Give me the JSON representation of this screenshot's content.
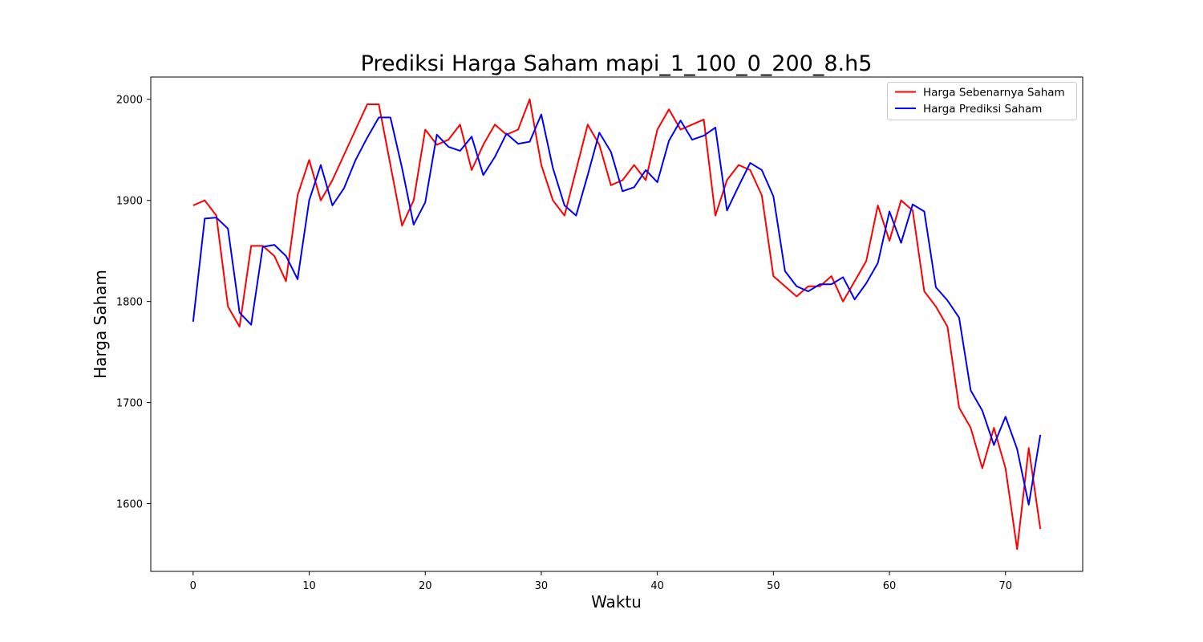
{
  "chart_data": {
    "type": "line",
    "title": "Prediksi Harga Saham mapi_1_100_0_200_8.h5",
    "xlabel": "Waktu",
    "ylabel": "Harga Saham",
    "xlim": [
      -3.65,
      76.65
    ],
    "ylim": [
      1533,
      2022
    ],
    "xticks": [
      0,
      10,
      20,
      30,
      40,
      50,
      60,
      70
    ],
    "yticks": [
      1600,
      1700,
      1800,
      1900,
      2000
    ],
    "grid": false,
    "legend_position": "top-right",
    "series": [
      {
        "name": "Harga Sebenarnya Saham",
        "color": "#ff0000",
        "values": [
          1895,
          1900,
          1885,
          1795,
          1775,
          1855,
          1855,
          1845,
          1820,
          1905,
          1940,
          1900,
          1920,
          1945,
          1970,
          1995,
          1995,
          1935,
          1875,
          1900,
          1970,
          1955,
          1960,
          1975,
          1930,
          1955,
          1975,
          1965,
          1970,
          2000,
          1935,
          1900,
          1885,
          1930,
          1975,
          1955,
          1915,
          1920,
          1935,
          1920,
          1970,
          1990,
          1970,
          1975,
          1980,
          1885,
          1920,
          1935,
          1930,
          1905,
          1825,
          1815,
          1805,
          1815,
          1815,
          1825,
          1800,
          1820,
          1840,
          1895,
          1860,
          1900,
          1890,
          1810,
          1795,
          1775,
          1695,
          1675,
          1635,
          1675,
          1635,
          1555,
          1655,
          1575
        ]
      },
      {
        "name": "Harga Prediksi Saham",
        "color": "#0000ff",
        "values": [
          1780,
          1882,
          1883,
          1872,
          1789,
          1777,
          1854,
          1856,
          1845,
          1822,
          1900,
          1935,
          1895,
          1912,
          1940,
          1962,
          1982,
          1982,
          1932,
          1876,
          1898,
          1965,
          1953,
          1949,
          1963,
          1925,
          1943,
          1966,
          1956,
          1958,
          1985,
          1932,
          1895,
          1885,
          1925,
          1967,
          1948,
          1909,
          1913,
          1930,
          1918,
          1959,
          1979,
          1960,
          1964,
          1972,
          1890,
          1914,
          1937,
          1930,
          1904,
          1830,
          1815,
          1810,
          1817,
          1817,
          1824,
          1802,
          1818,
          1838,
          1889,
          1858,
          1896,
          1889,
          1814,
          1801,
          1784,
          1712,
          1692,
          1658,
          1686,
          1654,
          1599,
          1668
        ]
      }
    ]
  }
}
